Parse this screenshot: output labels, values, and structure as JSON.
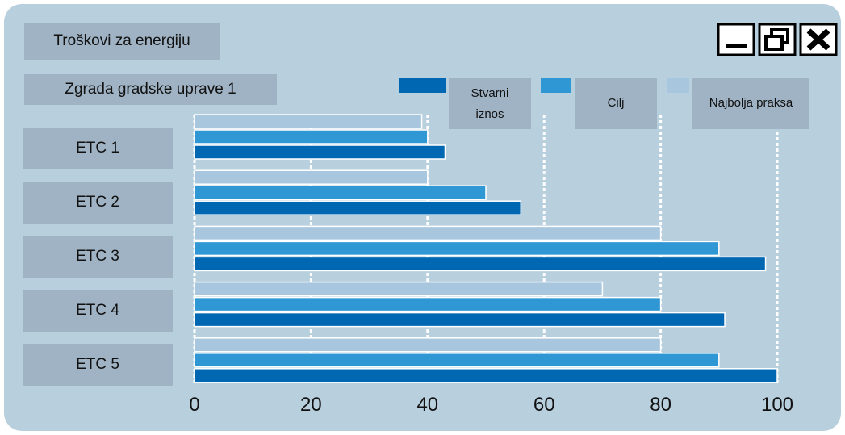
{
  "chart_data": {
    "type": "hbar",
    "title": "Troškovi za energiju",
    "subtitle": "Zgrada gradske uprave 1",
    "categories": [
      "ETC 1",
      "ETC 2",
      "ETC 3",
      "ETC 4",
      "ETC 5"
    ],
    "series": [
      {
        "name": "Stvarni iznos",
        "color": "#0068b2",
        "values": [
          43,
          56,
          98,
          91,
          100
        ]
      },
      {
        "name": "Cilj",
        "color": "#2f97d4",
        "values": [
          40,
          50,
          90,
          80,
          90
        ]
      },
      {
        "name": "Najbolja praksa",
        "color": "#a8c7df",
        "values": [
          39,
          40,
          80,
          70,
          80
        ]
      }
    ],
    "xlim": [
      0,
      100
    ],
    "xticks": [
      0,
      20,
      40,
      60,
      80,
      100
    ],
    "grid": true
  }
}
